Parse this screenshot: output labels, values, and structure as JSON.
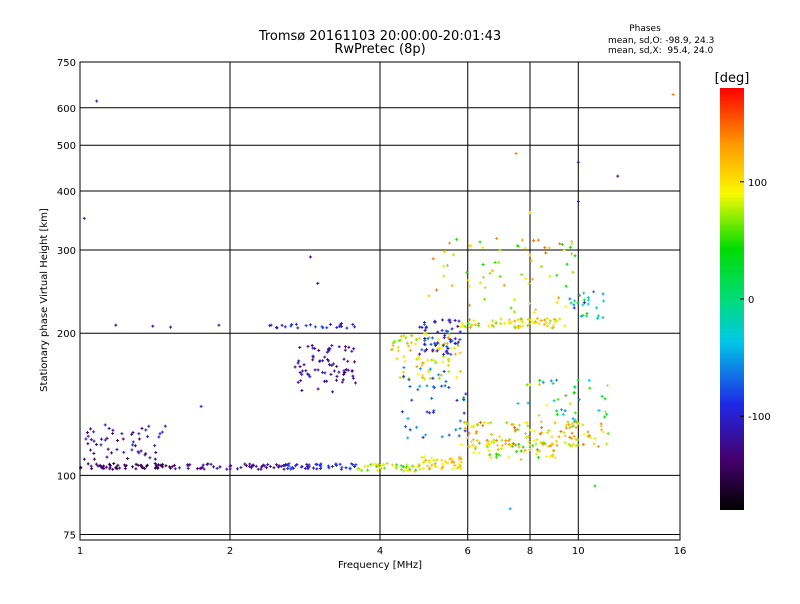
{
  "chart_data": {
    "type": "scatter",
    "title": "Tromsø 20161103 20:00:00-20:01:43",
    "subtitle": "RwPretec (8p)",
    "xlabel": "Frequency [MHz]",
    "ylabel": "Stationary phase Virtual Height [km]",
    "x_scale": "log",
    "y_scale": "log",
    "xlim": [
      1,
      16
    ],
    "ylim": [
      73,
      750
    ],
    "x_ticks": [
      1,
      2,
      4,
      6,
      8,
      10,
      16
    ],
    "y_ticks": [
      75,
      100,
      200,
      300,
      400,
      500,
      600,
      750
    ],
    "grid": true,
    "phase_stats": {
      "title": "Phases",
      "line_o": "mean, sd,O: -98.9, 24.3",
      "line_x": "mean, sd,X:  95.4, 24.0"
    },
    "colorbar": {
      "label": "[deg]",
      "range": [
        -180,
        180
      ],
      "ticks": [
        100,
        0,
        -100
      ],
      "colormap": "rainbow"
    },
    "point_groups": [
      {
        "f_range": [
          1.0,
          1.55
        ],
        "h_range": [
          103,
          106
        ],
        "phase_range": [
          -160,
          -130
        ],
        "count": 60
      },
      {
        "f_range": [
          1.55,
          2.6
        ],
        "h_range": [
          103,
          106
        ],
        "phase_range": [
          -140,
          -110
        ],
        "count": 55
      },
      {
        "f_range": [
          2.6,
          3.6
        ],
        "h_range": [
          103,
          106
        ],
        "phase_range": [
          -120,
          -70
        ],
        "count": 45
      },
      {
        "f_range": [
          3.6,
          4.8
        ],
        "h_range": [
          102,
          106
        ],
        "phase_range": [
          40,
          120
        ],
        "count": 45
      },
      {
        "f_range": [
          4.8,
          5.9
        ],
        "h_range": [
          103,
          110
        ],
        "phase_range": [
          80,
          130
        ],
        "count": 45
      },
      {
        "f_range": [
          1.02,
          1.5
        ],
        "h_range": [
          108,
          128
        ],
        "phase_range": [
          -140,
          -90
        ],
        "count": 55
      },
      {
        "f_range": [
          2.7,
          3.6
        ],
        "h_range": [
          150,
          190
        ],
        "phase_range": [
          -140,
          -100
        ],
        "count": 75
      },
      {
        "f_range": [
          2.4,
          3.6
        ],
        "h_range": [
          205,
          210
        ],
        "phase_range": [
          -120,
          -80
        ],
        "count": 25
      },
      {
        "f_range": [
          4.2,
          5.8
        ],
        "h_range": [
          160,
          200
        ],
        "phase_range": [
          60,
          130
        ],
        "count": 80
      },
      {
        "f_range": [
          4.8,
          5.8
        ],
        "h_range": [
          180,
          215
        ],
        "phase_range": [
          -130,
          -60
        ],
        "count": 60
      },
      {
        "f_range": [
          4.4,
          6.0
        ],
        "h_range": [
          120,
          170
        ],
        "phase_range": [
          -100,
          -40
        ],
        "count": 45
      },
      {
        "f_range": [
          5.8,
          9.5
        ],
        "h_range": [
          205,
          215
        ],
        "phase_range": [
          60,
          140
        ],
        "count": 70
      },
      {
        "f_range": [
          5.8,
          11.5
        ],
        "h_range": [
          115,
          130
        ],
        "phase_range": [
          60,
          150
        ],
        "count": 120
      },
      {
        "f_range": [
          6.0,
          9.0
        ],
        "h_range": [
          108,
          118
        ],
        "phase_range": [
          40,
          130
        ],
        "count": 60
      },
      {
        "f_range": [
          5.0,
          10.0
        ],
        "h_range": [
          220,
          320
        ],
        "phase_range": [
          40,
          150
        ],
        "count": 70
      },
      {
        "f_range": [
          7.5,
          11.5
        ],
        "h_range": [
          130,
          160
        ],
        "phase_range": [
          -60,
          120
        ],
        "count": 40
      },
      {
        "f_range": [
          9.5,
          11.5
        ],
        "h_range": [
          215,
          245
        ],
        "phase_range": [
          -100,
          40
        ],
        "count": 25
      }
    ],
    "sparse_points": [
      {
        "f": 1.08,
        "h": 620,
        "phase": -110
      },
      {
        "f": 1.02,
        "h": 350,
        "phase": -100
      },
      {
        "f": 1.18,
        "h": 208,
        "phase": -130
      },
      {
        "f": 1.4,
        "h": 207,
        "phase": -130
      },
      {
        "f": 1.52,
        "h": 206,
        "phase": -120
      },
      {
        "f": 1.9,
        "h": 208,
        "phase": -110
      },
      {
        "f": 2.9,
        "h": 290,
        "phase": -130
      },
      {
        "f": 3.0,
        "h": 255,
        "phase": -120
      },
      {
        "f": 1.75,
        "h": 140,
        "phase": -90
      },
      {
        "f": 7.5,
        "h": 480,
        "phase": 140
      },
      {
        "f": 10.0,
        "h": 460,
        "phase": -110
      },
      {
        "f": 12.0,
        "h": 430,
        "phase": -120
      },
      {
        "f": 8.0,
        "h": 360,
        "phase": 110
      },
      {
        "f": 10.0,
        "h": 380,
        "phase": -110
      },
      {
        "f": 7.3,
        "h": 85,
        "phase": -50
      },
      {
        "f": 10.8,
        "h": 95,
        "phase": 40
      },
      {
        "f": 15.5,
        "h": 640,
        "phase": 140
      }
    ]
  }
}
